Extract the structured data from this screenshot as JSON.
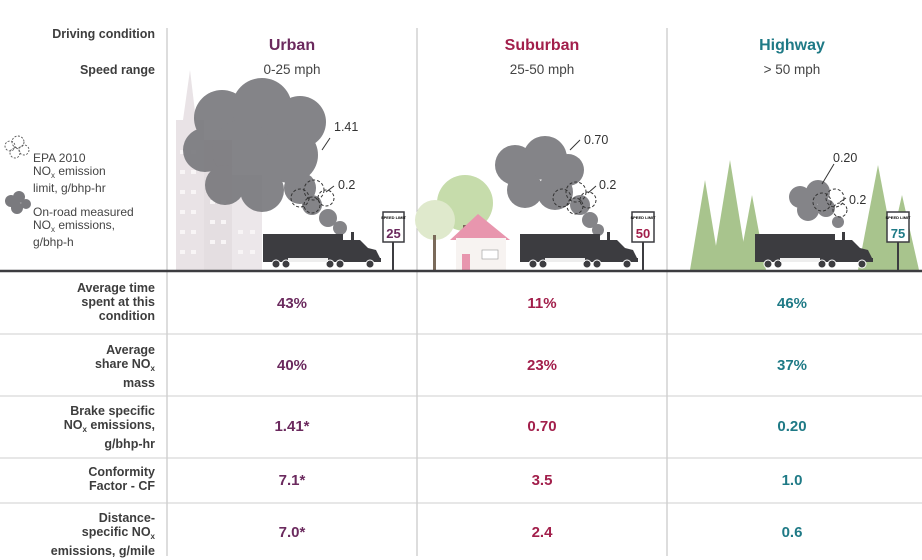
{
  "header": {
    "driving_condition_label": "Driving condition",
    "speed_range_label": "Speed range",
    "columns": [
      {
        "name": "Urban",
        "speed": "0-25 mph",
        "color": "#6b2a5e"
      },
      {
        "name": "Suburban",
        "speed": "25-50 mph",
        "color": "#a21f4b"
      },
      {
        "name": "Highway",
        "speed": "> 50 mph",
        "color": "#1f7a86"
      }
    ]
  },
  "legend": {
    "epa_line1": "EPA 2010",
    "epa_line2_pre": "NO",
    "epa_line2_sub": "x",
    "epa_line2_post": " emission",
    "epa_line3": "limit, g/bhp-hr",
    "onroad_line1": "On-road measured",
    "onroad_line2_pre": "NO",
    "onroad_line2_sub": "x",
    "onroad_line2_post": " emissions,",
    "onroad_line3": "g/bhp-h"
  },
  "scenes": {
    "urban": {
      "measured": "1.41",
      "limit": "0.2",
      "speed_sign": "25",
      "sign_text": "SPEED LIMIT"
    },
    "suburban": {
      "measured": "0.70",
      "limit": "0.2",
      "speed_sign": "50",
      "sign_text": "SPEED LIMIT"
    },
    "highway": {
      "measured": "0.20",
      "limit": "0.2",
      "speed_sign": "75",
      "sign_text": "SPEED LIMIT"
    }
  },
  "rows": [
    {
      "label_lines": [
        "Average time",
        "spent at this",
        "condition"
      ],
      "values": [
        "43%",
        "11%",
        "46%"
      ]
    },
    {
      "label_lines": [
        "Average",
        "share NO",
        "mass"
      ],
      "label_sub": "x",
      "values": [
        "40%",
        "23%",
        "37%"
      ]
    },
    {
      "label_lines": [
        "Brake specific",
        "NO",
        "g/bhp-hr"
      ],
      "label_sub": "x",
      "label_post": " emissions,",
      "values": [
        "1.41*",
        "0.70",
        "0.20"
      ]
    },
    {
      "label_lines": [
        "Conformity",
        "Factor - CF"
      ],
      "values": [
        "7.1*",
        "3.5",
        "1.0"
      ]
    },
    {
      "label_lines": [
        "Distance-",
        "specific NO",
        "emissions, g/mile"
      ],
      "label_sub": "x",
      "values": [
        "7.0*",
        "2.4",
        "0.6"
      ]
    }
  ]
}
